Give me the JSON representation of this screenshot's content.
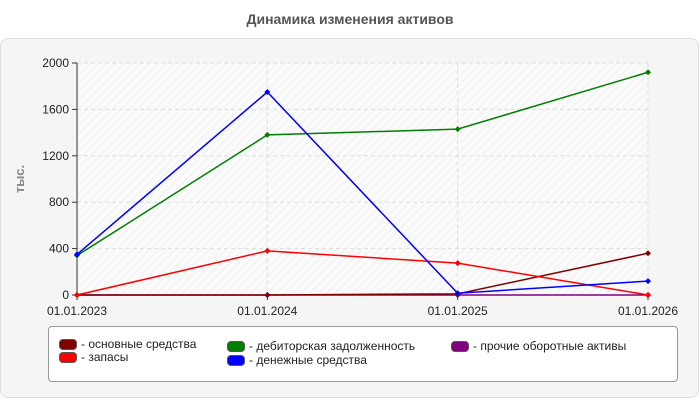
{
  "chart_data": {
    "type": "line",
    "title": "Динамика изменения активов",
    "ylabel": "тыс.",
    "xlabel": "",
    "categories": [
      "01.01.2023",
      "01.01.2024",
      "01.01.2025",
      "01.01.2026"
    ],
    "ylim": [
      0,
      2000
    ],
    "yticks": [
      0,
      400,
      800,
      1200,
      1600,
      2000
    ],
    "grid": true,
    "legend_position": "bottom",
    "series": [
      {
        "name": "основные средства",
        "color": "#7f0000",
        "values": [
          0,
          0,
          10,
          360
        ]
      },
      {
        "name": "дебиторская задолженность",
        "color": "#007f00",
        "values": [
          340,
          1380,
          1430,
          1920
        ]
      },
      {
        "name": "прочие оборотные активы",
        "color": "#7f007f",
        "values": [
          0,
          0,
          0,
          0
        ]
      },
      {
        "name": "запасы",
        "color": "#ff0000",
        "values": [
          0,
          380,
          275,
          0
        ]
      },
      {
        "name": "денежные средства",
        "color": "#0000ff",
        "values": [
          350,
          1750,
          15,
          120
        ]
      }
    ]
  }
}
